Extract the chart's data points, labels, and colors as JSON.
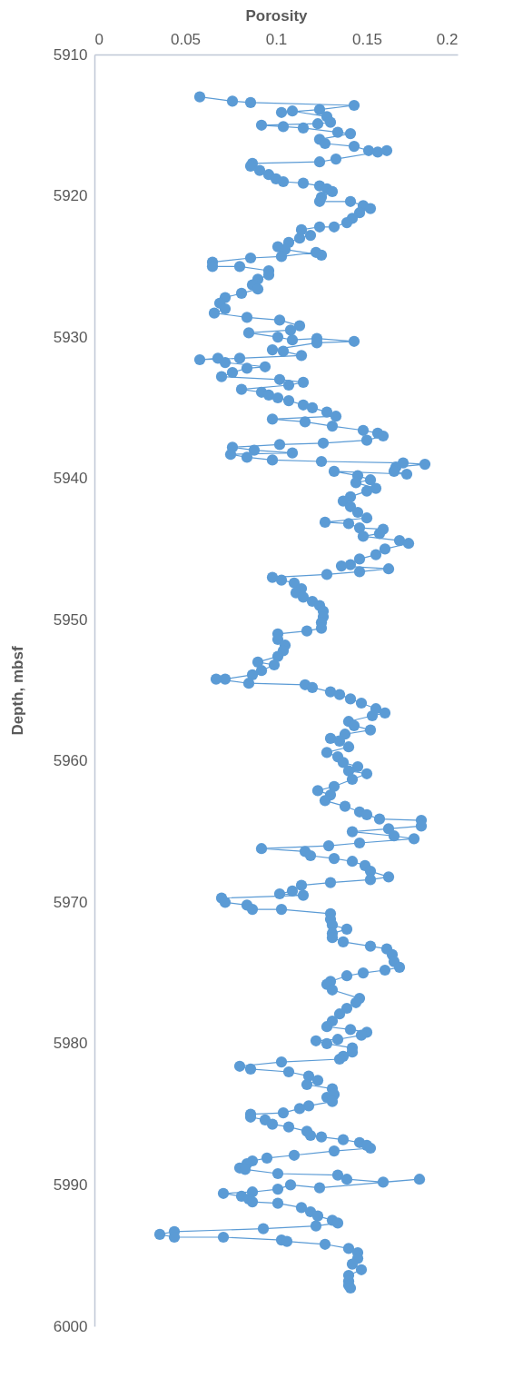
{
  "chart_data": {
    "type": "line",
    "xlabel": "Porosity",
    "ylabel": "Depth, mbsf",
    "marker": "circle",
    "line_style": "solid",
    "grid": false,
    "xlim": [
      0,
      0.2
    ],
    "xticks": [
      0,
      0.05,
      0.1,
      0.15,
      0.2
    ],
    "ylim": [
      6000,
      5910
    ],
    "yticks": [
      5910,
      5920,
      5930,
      5940,
      5950,
      5960,
      5970,
      5980,
      5990,
      6000
    ],
    "series": [
      {
        "color": "#5b9bd5",
        "x": [
          0.058,
          0.076,
          0.086,
          0.143,
          0.124,
          0.103,
          0.109,
          0.128,
          0.13,
          0.123,
          0.092,
          0.104,
          0.115,
          0.134,
          0.141,
          0.124,
          0.127,
          0.143,
          0.151,
          0.156,
          0.161,
          0.133,
          0.124,
          0.087,
          0.086,
          0.091,
          0.096,
          0.1,
          0.104,
          0.115,
          0.124,
          0.128,
          0.131,
          0.125,
          0.124,
          0.141,
          0.148,
          0.152,
          0.146,
          0.142,
          0.139,
          0.132,
          0.124,
          0.114,
          0.119,
          0.113,
          0.107,
          0.101,
          0.105,
          0.125,
          0.122,
          0.103,
          0.086,
          0.065,
          0.065,
          0.08,
          0.096,
          0.096,
          0.09,
          0.087,
          0.09,
          0.081,
          0.072,
          0.069,
          0.072,
          0.066,
          0.084,
          0.102,
          0.113,
          0.108,
          0.085,
          0.101,
          0.109,
          0.1225,
          0.143,
          0.1225,
          0.098,
          0.104,
          0.114,
          0.08,
          0.058,
          0.068,
          0.072,
          0.094,
          0.084,
          0.076,
          0.07,
          0.102,
          0.115,
          0.107,
          0.081,
          0.092,
          0.096,
          0.101,
          0.107,
          0.115,
          0.12,
          0.128,
          0.133,
          0.098,
          0.116,
          0.131,
          0.148,
          0.156,
          0.159,
          0.15,
          0.126,
          0.102,
          0.076,
          0.088,
          0.109,
          0.075,
          0.084,
          0.098,
          0.125,
          0.17,
          0.182,
          0.166,
          0.165,
          0.172,
          0.132,
          0.145,
          0.152,
          0.144,
          0.155,
          0.15,
          0.141,
          0.137,
          0.141,
          0.145,
          0.15,
          0.127,
          0.14,
          0.146,
          0.159,
          0.157,
          0.148,
          0.168,
          0.173,
          0.16,
          0.155,
          0.146,
          0.141,
          0.136,
          0.162,
          0.146,
          0.128,
          0.098,
          0.103,
          0.11,
          0.114,
          0.111,
          0.115,
          0.12,
          0.124,
          0.126,
          0.126,
          0.125,
          0.125,
          0.117,
          0.101,
          0.101,
          0.105,
          0.104,
          0.101,
          0.09,
          0.099,
          0.092,
          0.087,
          0.072,
          0.067,
          0.085,
          0.116,
          0.12,
          0.13,
          0.135,
          0.141,
          0.147,
          0.155,
          0.16,
          0.153,
          0.14,
          0.143,
          0.152,
          0.138,
          0.13,
          0.135,
          0.14,
          0.128,
          0.134,
          0.137,
          0.145,
          0.14,
          0.15,
          0.142,
          0.132,
          0.123,
          0.13,
          0.127,
          0.138,
          0.146,
          0.15,
          0.157,
          0.18,
          0.18,
          0.162,
          0.142,
          0.165,
          0.176,
          0.146,
          0.129,
          0.092,
          0.116,
          0.119,
          0.132,
          0.142,
          0.149,
          0.152,
          0.162,
          0.152,
          0.13,
          0.114,
          0.109,
          0.102,
          0.115,
          0.07,
          0.072,
          0.084,
          0.087,
          0.103,
          0.13,
          0.13,
          0.131,
          0.139,
          0.131,
          0.131,
          0.137,
          0.152,
          0.161,
          0.164,
          0.165,
          0.168,
          0.16,
          0.148,
          0.139,
          0.13,
          0.128,
          0.131,
          0.146,
          0.144,
          0.139,
          0.135,
          0.131,
          0.128,
          0.141,
          0.15,
          0.147,
          0.134,
          0.122,
          0.128,
          0.142,
          0.142,
          0.137,
          0.135,
          0.103,
          0.08,
          0.086,
          0.107,
          0.118,
          0.123,
          0.117,
          0.131,
          0.132,
          0.128,
          0.131,
          0.118,
          0.113,
          0.104,
          0.086,
          0.086,
          0.094,
          0.098,
          0.107,
          0.117,
          0.119,
          0.125,
          0.137,
          0.146,
          0.15,
          0.152,
          0.132,
          0.11,
          0.095,
          0.087,
          0.084,
          0.08,
          0.083,
          0.101,
          0.134,
          0.139,
          0.159,
          0.179,
          0.124,
          0.108,
          0.101,
          0.087,
          0.071,
          0.081,
          0.085,
          0.087,
          0.101,
          0.114,
          0.119,
          0.123,
          0.131,
          0.134,
          0.122,
          0.093,
          0.044,
          0.036,
          0.044,
          0.071,
          0.103,
          0.106,
          0.127,
          0.14,
          0.145,
          0.145,
          0.142,
          0.147,
          0.14,
          0.14,
          0.14,
          0.141
        ],
        "values": [
          5913.0,
          5913.3,
          5913.4,
          5913.6,
          5913.9,
          5914.1,
          5914.0,
          5914.4,
          5914.8,
          5914.9,
          5915.0,
          5915.1,
          5915.2,
          5915.5,
          5915.6,
          5916.0,
          5916.3,
          5916.5,
          5916.8,
          5916.9,
          5916.8,
          5917.4,
          5917.6,
          5917.7,
          5917.9,
          5918.2,
          5918.5,
          5918.8,
          5919.0,
          5919.1,
          5919.3,
          5919.5,
          5919.7,
          5920.1,
          5920.4,
          5920.4,
          5920.7,
          5920.9,
          5921.2,
          5921.6,
          5921.9,
          5922.2,
          5922.2,
          5922.4,
          5922.8,
          5923.0,
          5923.3,
          5923.6,
          5923.8,
          5924.2,
          5924.0,
          5924.3,
          5924.4,
          5924.7,
          5925.0,
          5925.0,
          5925.3,
          5925.6,
          5925.9,
          5926.3,
          5926.6,
          5926.9,
          5927.2,
          5927.6,
          5928.0,
          5928.3,
          5928.6,
          5928.8,
          5929.2,
          5929.5,
          5929.7,
          5930.0,
          5930.2,
          5930.1,
          5930.3,
          5930.4,
          5930.9,
          5931.0,
          5931.3,
          5931.5,
          5931.6,
          5931.5,
          5931.8,
          5932.1,
          5932.2,
          5932.5,
          5932.8,
          5933.0,
          5933.2,
          5933.4,
          5933.7,
          5933.9,
          5934.1,
          5934.3,
          5934.5,
          5934.8,
          5935.0,
          5935.3,
          5935.6,
          5935.8,
          5936.0,
          5936.3,
          5936.6,
          5936.8,
          5937.0,
          5937.3,
          5937.5,
          5937.6,
          5937.8,
          5938.0,
          5938.2,
          5938.3,
          5938.5,
          5938.7,
          5938.8,
          5938.9,
          5939.0,
          5939.2,
          5939.5,
          5939.7,
          5939.5,
          5939.8,
          5940.1,
          5940.3,
          5940.7,
          5940.9,
          5941.3,
          5941.6,
          5942.0,
          5942.4,
          5942.8,
          5943.1,
          5943.2,
          5943.5,
          5943.6,
          5943.9,
          5944.1,
          5944.4,
          5944.6,
          5945.0,
          5945.4,
          5945.7,
          5946.1,
          5946.2,
          5946.4,
          5946.6,
          5946.8,
          5947.0,
          5947.2,
          5947.4,
          5947.8,
          5948.1,
          5948.4,
          5948.7,
          5949.0,
          5949.4,
          5949.8,
          5950.2,
          5950.6,
          5950.8,
          5951.0,
          5951.4,
          5951.8,
          5952.2,
          5952.6,
          5953.0,
          5953.2,
          5953.6,
          5953.9,
          5954.2,
          5954.2,
          5954.5,
          5954.6,
          5954.8,
          5955.1,
          5955.3,
          5955.6,
          5955.9,
          5956.3,
          5956.6,
          5956.8,
          5957.2,
          5957.5,
          5957.8,
          5958.1,
          5958.4,
          5958.6,
          5959.0,
          5959.4,
          5959.7,
          5960.1,
          5960.4,
          5960.7,
          5960.9,
          5961.3,
          5961.8,
          5962.1,
          5962.4,
          5962.8,
          5963.2,
          5963.6,
          5963.8,
          5964.1,
          5964.2,
          5964.6,
          5964.8,
          5965.0,
          5965.3,
          5965.5,
          5965.8,
          5966.0,
          5966.2,
          5966.4,
          5966.7,
          5966.9,
          5967.1,
          5967.4,
          5967.8,
          5968.2,
          5968.4,
          5968.6,
          5968.8,
          5969.2,
          5969.4,
          5969.5,
          5969.7,
          5970.0,
          5970.2,
          5970.5,
          5970.5,
          5970.8,
          5971.2,
          5971.6,
          5971.9,
          5972.2,
          5972.5,
          5972.8,
          5973.1,
          5973.3,
          5973.7,
          5974.2,
          5974.6,
          5974.8,
          5975.0,
          5975.2,
          5975.6,
          5975.8,
          5976.2,
          5976.8,
          5977.1,
          5977.5,
          5977.9,
          5978.4,
          5978.8,
          5979.0,
          5979.2,
          5979.4,
          5979.7,
          5979.8,
          5980.0,
          5980.3,
          5980.6,
          5980.9,
          5981.1,
          5981.3,
          5981.6,
          5981.8,
          5982.0,
          5982.3,
          5982.6,
          5982.9,
          5983.2,
          5983.6,
          5983.8,
          5984.1,
          5984.4,
          5984.6,
          5984.9,
          5985.0,
          5985.2,
          5985.4,
          5985.7,
          5985.9,
          5986.2,
          5986.5,
          5986.6,
          5986.8,
          5987.0,
          5987.2,
          5987.4,
          5987.6,
          5987.9,
          5988.1,
          5988.3,
          5988.5,
          5988.8,
          5988.9,
          5989.2,
          5989.3,
          5989.6,
          5989.8,
          5989.6,
          5990.2,
          5990.0,
          5990.3,
          5990.5,
          5990.6,
          5990.8,
          5991.0,
          5991.2,
          5991.3,
          5991.6,
          5991.9,
          5992.2,
          5992.5,
          5992.7,
          5992.9,
          5993.1,
          5993.3,
          5993.5,
          5993.7,
          5993.7,
          5993.9,
          5994.0,
          5994.2,
          5994.5,
          5994.8,
          5995.2,
          5995.6,
          5996.0,
          5996.4,
          5996.8,
          5997.1,
          5997.3
        ]
      }
    ]
  }
}
